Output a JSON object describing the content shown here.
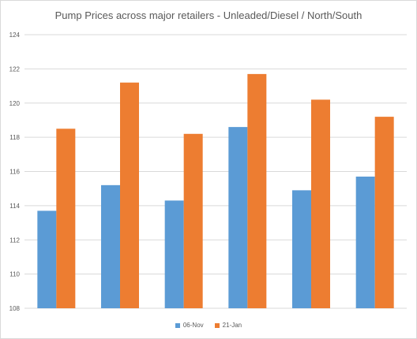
{
  "chart_data": {
    "type": "bar",
    "title": "Pump Prices across major retailers - Unleaded/Diesel / North/South",
    "xlabel": "",
    "ylabel": "",
    "categories": [
      "",
      "",
      "",
      "",
      "",
      ""
    ],
    "ylim": [
      108,
      124
    ],
    "yticks": [
      108,
      110,
      112,
      114,
      116,
      118,
      120,
      122,
      124
    ],
    "grid": true,
    "legend_position": "bottom",
    "series": [
      {
        "name": "06-Nov",
        "color": "#5b9bd5",
        "values": [
          113.7,
          115.2,
          114.3,
          118.6,
          114.9,
          115.7
        ]
      },
      {
        "name": "21-Jan",
        "color": "#ed7d31",
        "values": [
          118.5,
          121.2,
          118.2,
          121.7,
          120.2,
          119.2
        ]
      }
    ]
  }
}
